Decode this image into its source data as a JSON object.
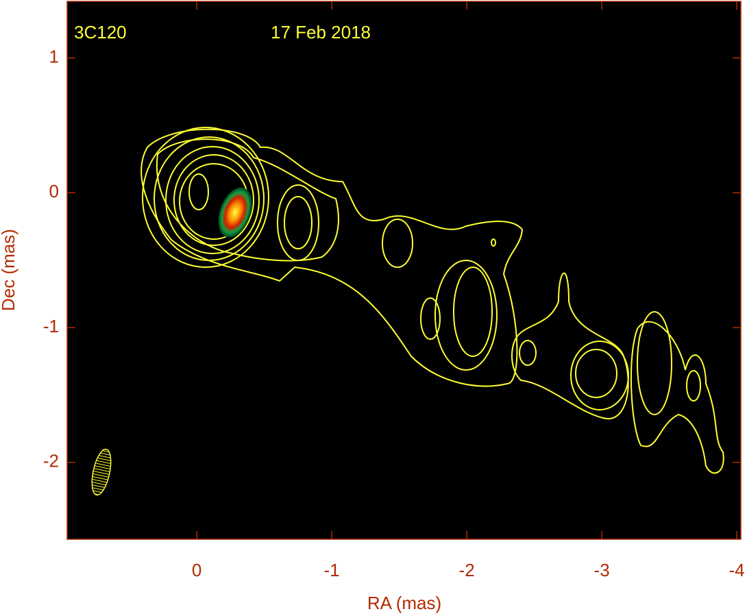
{
  "chart_data": {
    "type": "image",
    "annotations": [
      "3C120",
      "17 Feb 2018"
    ],
    "x_label": "RA (mas)",
    "y_label": "Dec (mas)",
    "xlim": [
      0.96,
      -4.03
    ],
    "ylim": [
      -2.57,
      1.42
    ],
    "xticks": [
      0,
      -1,
      -2,
      -3,
      -4
    ],
    "yticks": [
      1,
      0,
      -1,
      -2
    ],
    "axis_color": "#b22a00",
    "contour_color": "#ffff33"
  }
}
